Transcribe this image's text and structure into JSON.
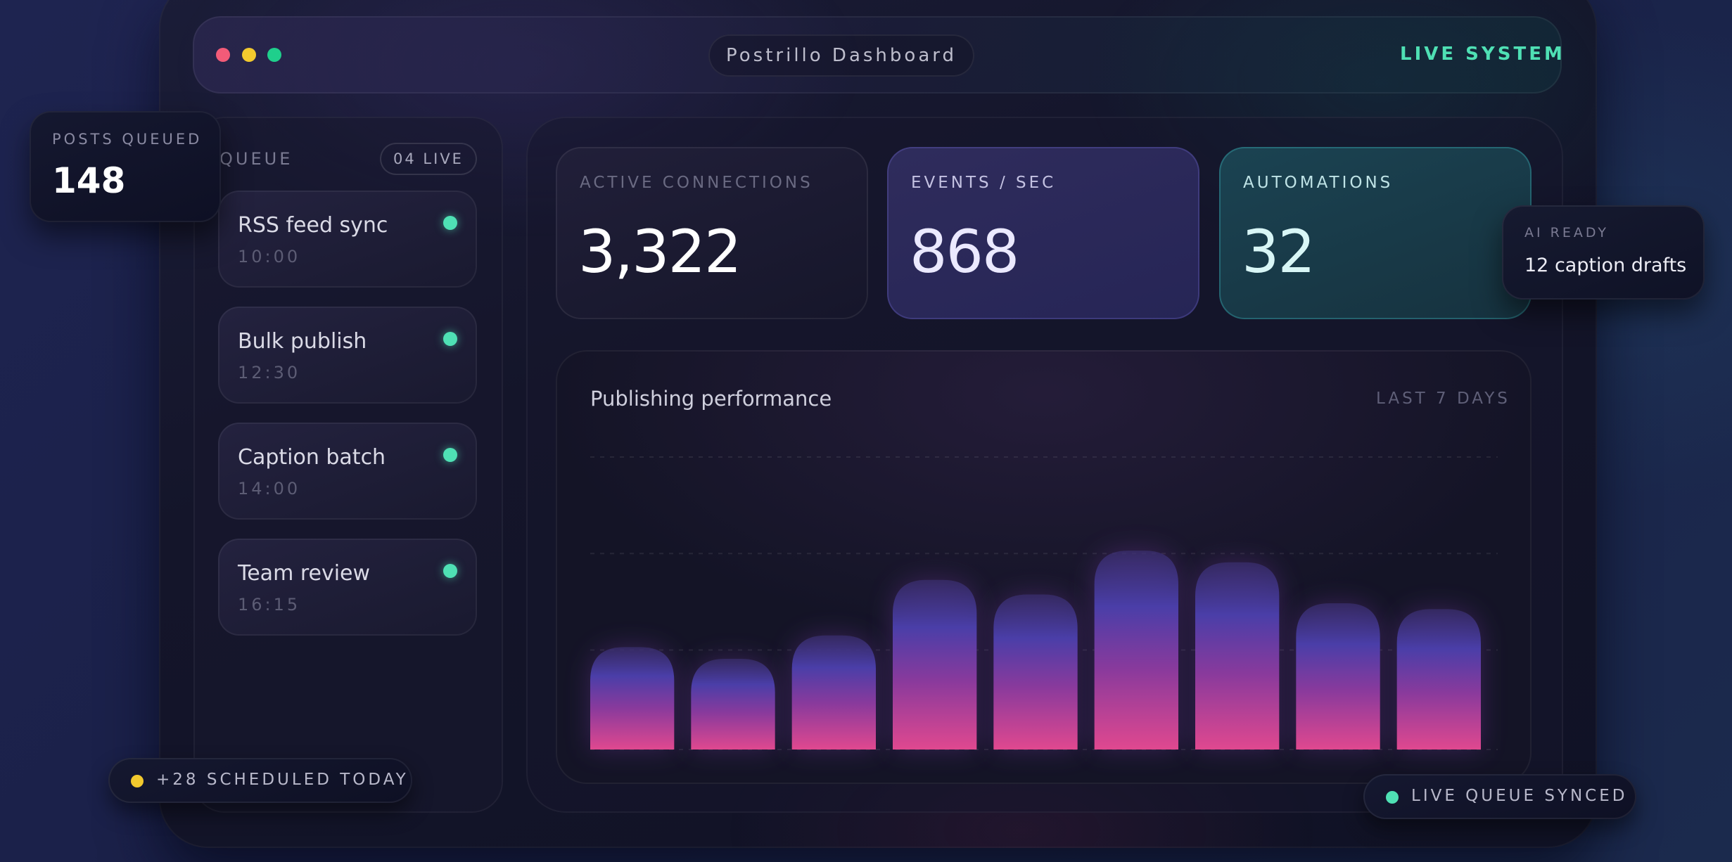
{
  "window": {
    "title": "Postrillo Dashboard",
    "status": "LIVE SYSTEM"
  },
  "queue": {
    "title": "QUEUE",
    "badge": "04 LIVE",
    "items": [
      {
        "name": "RSS feed sync",
        "time": "10:00"
      },
      {
        "name": "Bulk publish",
        "time": "12:30"
      },
      {
        "name": "Caption batch",
        "time": "14:00"
      },
      {
        "name": "Team review",
        "time": "16:15"
      }
    ]
  },
  "stats": [
    {
      "label": "ACTIVE CONNECTIONS",
      "value": "3,322"
    },
    {
      "label": "EVENTS / SEC",
      "value": "868"
    },
    {
      "label": "AUTOMATIONS",
      "value": "32"
    }
  ],
  "chart": {
    "title": "Publishing performance",
    "range": "LAST 7 DAYS"
  },
  "chart_data": {
    "type": "bar",
    "title": "Publishing performance",
    "values": [
      0.35,
      0.31,
      0.39,
      0.58,
      0.53,
      0.68,
      0.64,
      0.5,
      0.48
    ],
    "ylim": [
      0,
      1
    ],
    "grid": true,
    "colors": {
      "top": "#4a3ea8",
      "mid": "#8a3a9c",
      "bottom": "#e0488f"
    }
  },
  "floating": {
    "posts_queued_label": "POSTS QUEUED",
    "posts_queued_value": "148",
    "ai_ready_label": "AI READY",
    "ai_ready_value": "12 caption drafts",
    "scheduled_today": "+28 SCHEDULED TODAY",
    "live_queue": "LIVE QUEUE SYNCED"
  },
  "colors": {
    "accent_green": "#4fe0b4",
    "accent_yellow": "#f2c92e",
    "accent_red": "#f35b78",
    "card_purple": "#2f2c5c",
    "card_teal": "#1b4352"
  }
}
